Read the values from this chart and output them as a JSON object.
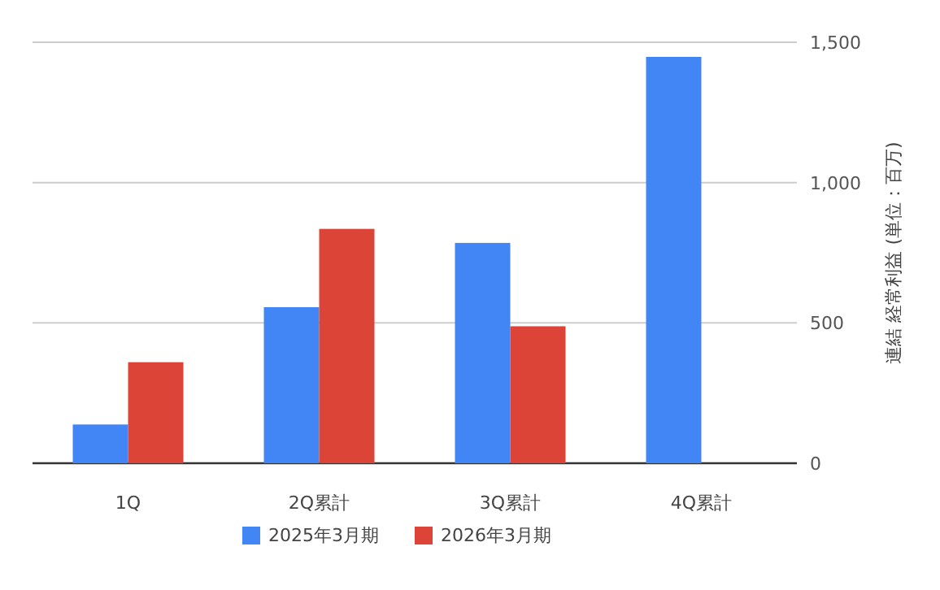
{
  "chart_data": {
    "type": "bar",
    "ylabel": "連結 経常利益 (単位：百万)",
    "categories": [
      "1Q",
      "2Q累計",
      "3Q累計",
      "4Q累計"
    ],
    "series": [
      {
        "name": "2025年3月期",
        "color": "#4285f4",
        "values": [
          138,
          556,
          785,
          1448
        ]
      },
      {
        "name": "2026年3月期",
        "color": "#db4437",
        "values": [
          360,
          835,
          488,
          null
        ]
      }
    ],
    "ylim": [
      0,
      1500
    ],
    "yticks": [
      0,
      {
        "value": 500,
        "label": "500"
      },
      {
        "value": 1000,
        "label": "1,000"
      },
      {
        "value": 1500,
        "label": "1,500"
      }
    ],
    "grid": "y",
    "legend": "bottom"
  }
}
